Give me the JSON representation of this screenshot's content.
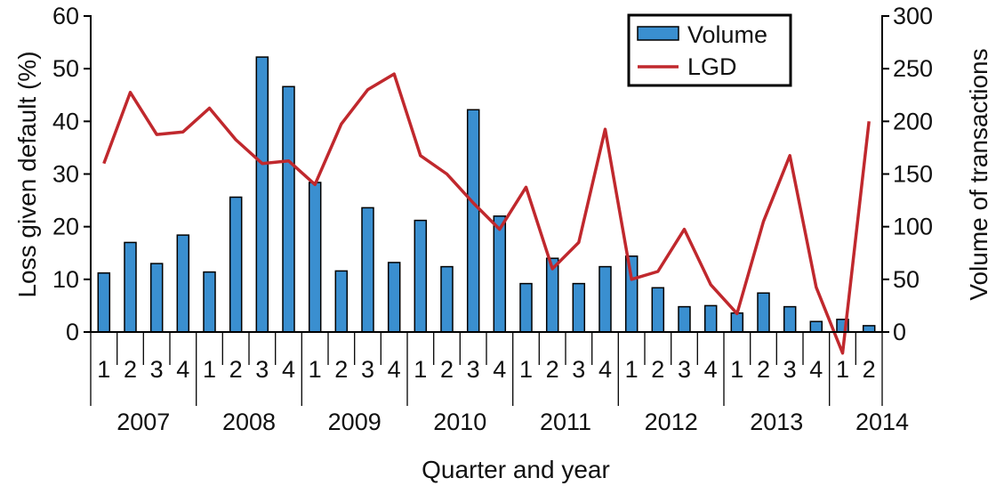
{
  "chart_data": {
    "type": "bar+line",
    "xlabel": "Quarter and year",
    "ylabel_left": "Loss given default (%)",
    "ylabel_right": "Volume of transactions",
    "ylim_left": [
      0,
      60
    ],
    "ylim_right": [
      0,
      300
    ],
    "yticks_left": [
      "0",
      "10",
      "20",
      "30",
      "40",
      "50",
      "60"
    ],
    "yticks_right": [
      "0",
      "50",
      "100",
      "150",
      "200",
      "250",
      "300"
    ],
    "years": [
      "2007",
      "2008",
      "2009",
      "2010",
      "2011",
      "2012",
      "2013",
      "2014"
    ],
    "quarters": [
      "1",
      "2",
      "3",
      "4",
      "1",
      "2",
      "3",
      "4",
      "1",
      "2",
      "3",
      "4",
      "1",
      "2",
      "3",
      "4",
      "1",
      "2",
      "3",
      "4",
      "1",
      "2",
      "3",
      "4",
      "1",
      "2",
      "3",
      "4",
      "1",
      "2"
    ],
    "legend": {
      "volume": "Volume",
      "lgd": "LGD",
      "position": "top-right"
    },
    "series": [
      {
        "name": "Volume",
        "axis": "right",
        "kind": "bar",
        "values": [
          56,
          85,
          65,
          92,
          57,
          128,
          261,
          233,
          142,
          58,
          118,
          66,
          106,
          62,
          211,
          110,
          46,
          70,
          46,
          62,
          72,
          42,
          24,
          25,
          18,
          37,
          24,
          10,
          12,
          6
        ]
      },
      {
        "name": "LGD",
        "axis": "left",
        "kind": "line",
        "values": [
          32,
          45.5,
          37.5,
          38,
          42.5,
          36.5,
          32,
          32.5,
          28,
          39.5,
          46,
          49,
          33.5,
          30,
          24.5,
          19.5,
          27.5,
          12,
          17,
          38.5,
          10,
          11.5,
          19.5,
          9,
          3.5,
          21,
          33.5,
          8.5,
          -4,
          40
        ]
      }
    ],
    "colors": {
      "bar": "#3a8fd0",
      "line": "#c0282d"
    }
  }
}
